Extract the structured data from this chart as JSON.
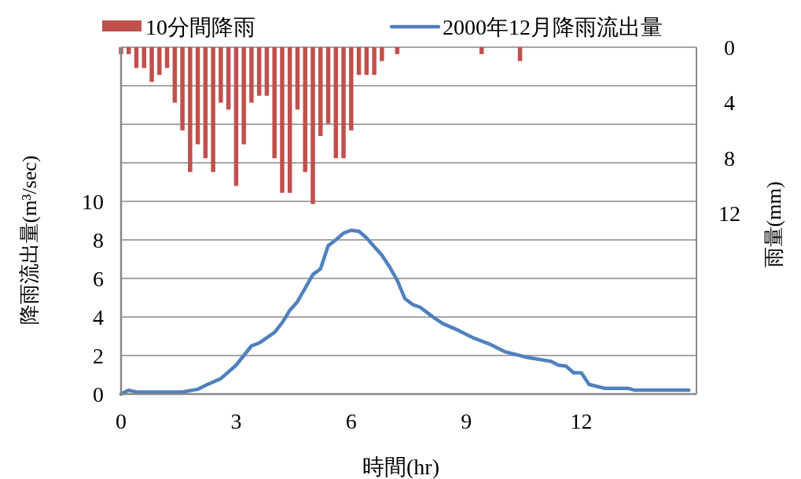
{
  "chart_data": {
    "type": "line",
    "xlabel": "時間(hr)",
    "ylabel": "降雨流出量(m³/sec)",
    "y2label": "雨量(mm)",
    "xlim": [
      0,
      15
    ],
    "xticks": [
      0,
      3,
      6,
      9,
      12
    ],
    "ylim": [
      0,
      18
    ],
    "yticks": [
      0,
      2,
      4,
      6,
      8,
      10,
      {
        "value": 12,
        "label": null
      },
      {
        "value": 14,
        "label": null
      },
      {
        "value": 16,
        "label": null
      },
      {
        "value": 18,
        "label": null
      }
    ],
    "y2lim": [
      25,
      0
    ],
    "y2ticks": [
      0,
      4,
      8,
      12
    ],
    "grid": "y",
    "legend": "top",
    "series": [
      {
        "name": "10分間降雨",
        "type": "bar",
        "axis": "y2",
        "color": "#c0504d",
        "x": [
          0,
          0.2,
          0.4,
          0.6,
          0.8,
          1,
          1.2,
          1.4,
          1.6,
          1.8,
          2,
          2.2,
          2.4,
          2.6,
          2.8,
          3,
          3.2,
          3.4,
          3.6,
          3.8,
          4,
          4.2,
          4.4,
          4.6,
          4.8,
          5,
          5.2,
          5.4,
          5.6,
          5.8,
          6,
          6.2,
          6.4,
          6.6,
          6.8,
          7,
          7.2,
          7.4,
          7.6,
          7.8,
          8,
          8.2,
          8.4,
          8.6,
          8.8,
          9,
          9.2,
          9.4,
          9.6,
          9.8,
          10,
          10.2,
          10.4
        ],
        "values": [
          0.5,
          0.5,
          1.5,
          1.5,
          2.5,
          2,
          1.5,
          4,
          6,
          9,
          7,
          8,
          9,
          4,
          4.5,
          10,
          7,
          4,
          3.5,
          3.5,
          8,
          10.5,
          10.5,
          4.5,
          9,
          11.3,
          6.4,
          5.5,
          8,
          8,
          6,
          2,
          2,
          2,
          1,
          0,
          0.5,
          0,
          0,
          0,
          0,
          0,
          0,
          0,
          0,
          0,
          0,
          0.5,
          0,
          0,
          0,
          0,
          1
        ]
      },
      {
        "name": "2000年12月降雨流出量",
        "color": "#4f81bd",
        "x": [
          0,
          0.2,
          0.4,
          1.6,
          2.0,
          2.2,
          2.6,
          3.0,
          3.4,
          3.6,
          4.0,
          4.2,
          4.4,
          4.6,
          4.8,
          5.0,
          5.2,
          5.4,
          5.6,
          5.8,
          6.0,
          6.2,
          6.4,
          6.8,
          7.0,
          7.2,
          7.4,
          7.6,
          7.8,
          8.0,
          8.2,
          8.4,
          8.8,
          9.2,
          9.6,
          10.0,
          10.6,
          11.2,
          11.4,
          11.6,
          11.8,
          12.0,
          12.2,
          12.6,
          13.2,
          13.4,
          14.8
        ],
        "values": [
          0,
          0.2,
          0.1,
          0.1,
          0.25,
          0.45,
          0.8,
          1.5,
          2.5,
          2.65,
          3.2,
          3.7,
          4.35,
          4.8,
          5.5,
          6.2,
          6.5,
          7.7,
          8.0,
          8.35,
          8.5,
          8.45,
          8.1,
          7.2,
          6.6,
          5.9,
          4.95,
          4.65,
          4.5,
          4.2,
          3.9,
          3.65,
          3.3,
          2.9,
          2.6,
          2.2,
          1.9,
          1.7,
          1.5,
          1.45,
          1.1,
          1.1,
          0.5,
          0.3,
          0.3,
          0.2,
          0.2
        ]
      }
    ]
  }
}
